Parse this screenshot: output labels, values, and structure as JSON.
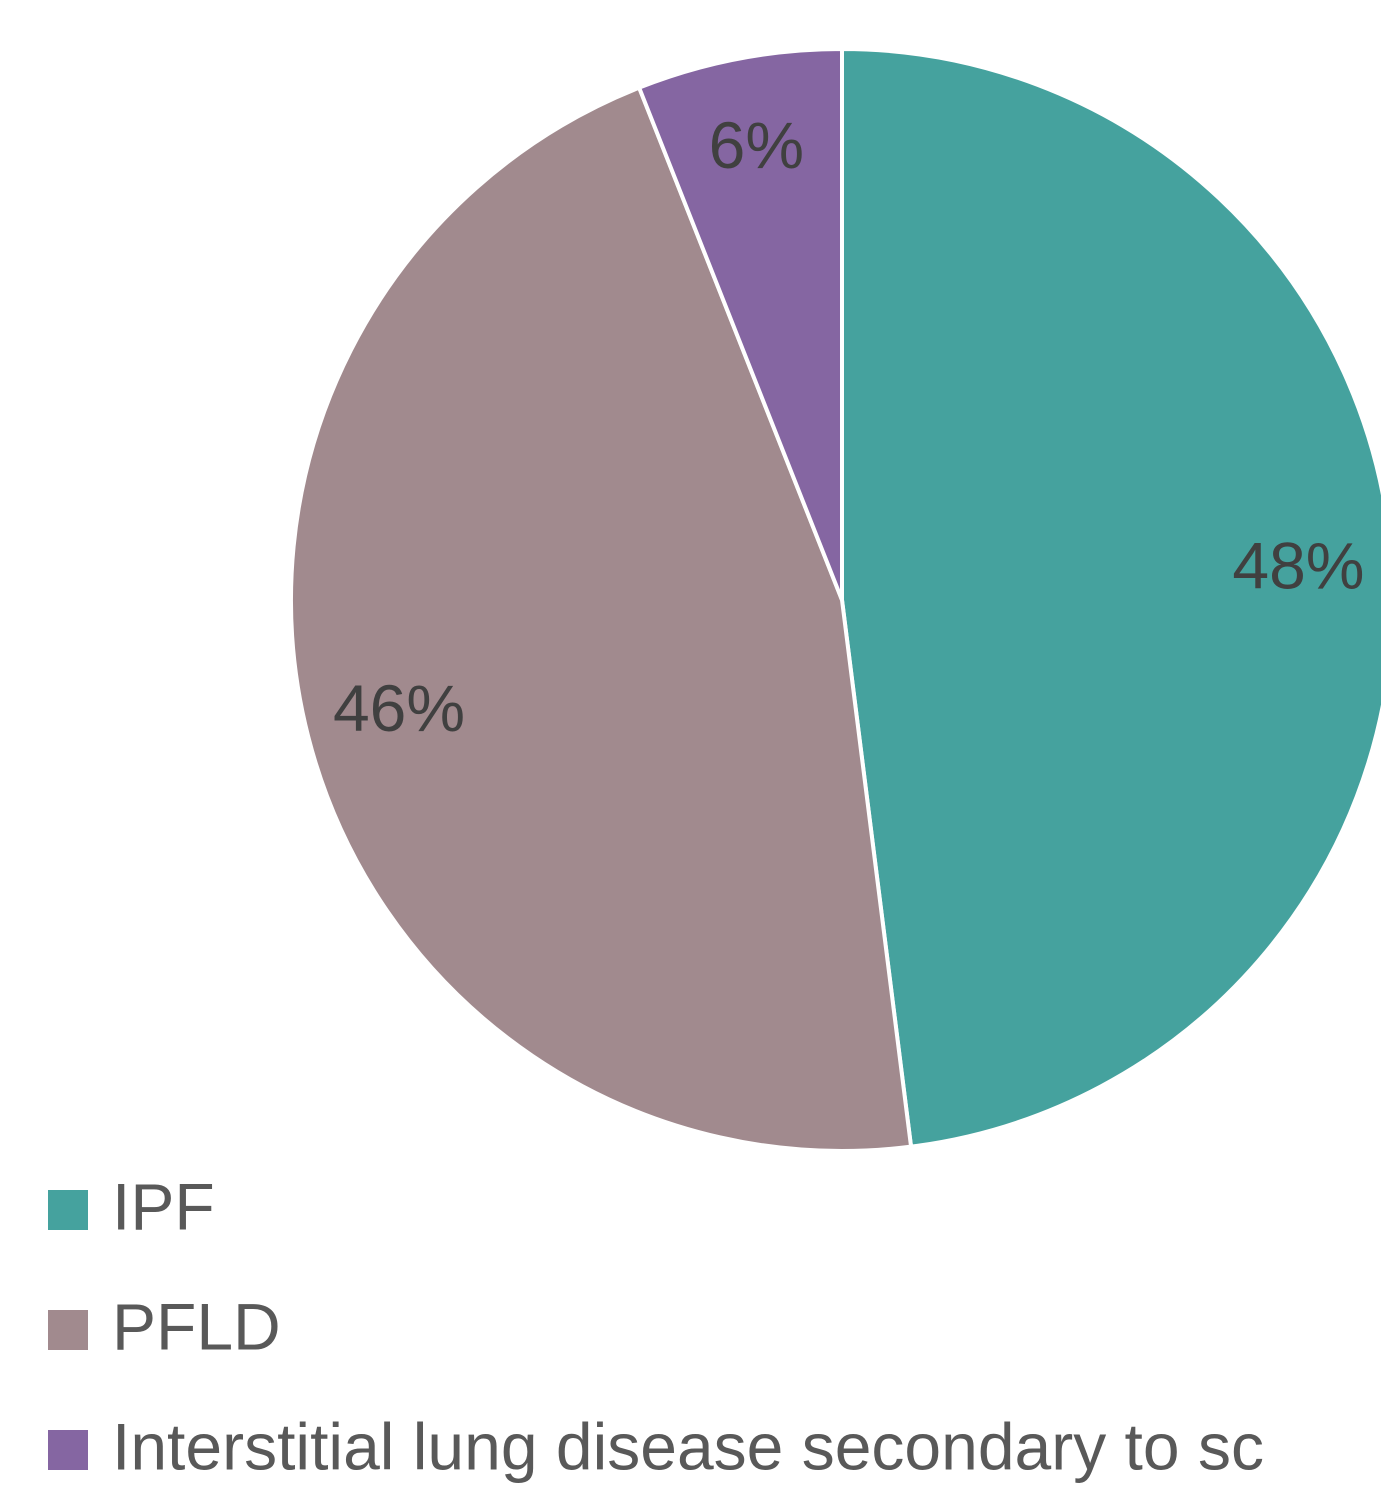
{
  "chart_data": {
    "type": "pie",
    "categories": [
      "IPF",
      "PFLD",
      "Interstitial lung disease secondary to sc"
    ],
    "values": [
      48,
      46,
      6
    ],
    "value_labels": [
      "48%",
      "46%",
      "6%"
    ],
    "colors": [
      "#45a29e",
      "#a18a8e",
      "#8566a2"
    ],
    "legend": "bottom"
  }
}
